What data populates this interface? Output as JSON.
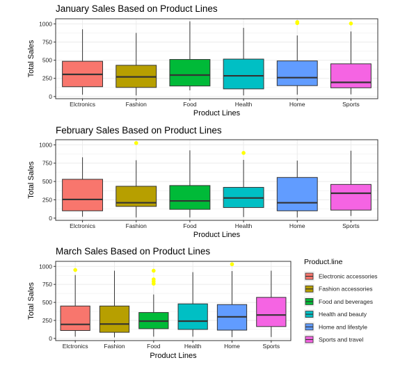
{
  "chart_data": [
    {
      "type": "boxplot",
      "title": "January Sales Based on Product Lines",
      "xlabel": "Product Lines",
      "ylabel": "Total Sales",
      "categories": [
        "Elctronics",
        "Fashion",
        "Food",
        "Health",
        "Home",
        "Sports"
      ],
      "ylim": [
        -30,
        1070
      ],
      "yticks": [
        0,
        250,
        500,
        750,
        1000
      ],
      "grid": true,
      "boxes": [
        {
          "min": 25,
          "q1": 135,
          "median": 305,
          "q3": 485,
          "max": 925,
          "outliers": []
        },
        {
          "min": 15,
          "q1": 125,
          "median": 270,
          "q3": 430,
          "max": 875,
          "outliers": []
        },
        {
          "min": 85,
          "q1": 145,
          "median": 295,
          "q3": 510,
          "max": 1035,
          "outliers": []
        },
        {
          "min": 15,
          "q1": 105,
          "median": 285,
          "q3": 515,
          "max": 945,
          "outliers": []
        },
        {
          "min": 25,
          "q1": 150,
          "median": 260,
          "q3": 490,
          "max": 840,
          "outliers": [
            1010,
            1025
          ]
        },
        {
          "min": 30,
          "q1": 120,
          "median": 195,
          "q3": 450,
          "max": 895,
          "outliers": [
            1005
          ]
        }
      ]
    },
    {
      "type": "boxplot",
      "title": "February Sales Based on Product Lines",
      "xlabel": "Product Lines",
      "ylabel": "Total Sales",
      "categories": [
        "Elctronics",
        "Fashion",
        "Food",
        "Health",
        "Home",
        "Sports"
      ],
      "ylim": [
        -30,
        1070
      ],
      "yticks": [
        0,
        250,
        500,
        750,
        1000
      ],
      "grid": true,
      "boxes": [
        {
          "min": 20,
          "q1": 100,
          "median": 255,
          "q3": 530,
          "max": 830,
          "outliers": []
        },
        {
          "min": 10,
          "q1": 160,
          "median": 210,
          "q3": 435,
          "max": 790,
          "outliers": [
            1025
          ]
        },
        {
          "min": 10,
          "q1": 120,
          "median": 235,
          "q3": 445,
          "max": 925,
          "outliers": []
        },
        {
          "min": 15,
          "q1": 145,
          "median": 275,
          "q3": 420,
          "max": 795,
          "outliers": [
            890
          ]
        },
        {
          "min": 10,
          "q1": 100,
          "median": 210,
          "q3": 555,
          "max": 785,
          "outliers": []
        },
        {
          "min": 30,
          "q1": 110,
          "median": 340,
          "q3": 460,
          "max": 920,
          "outliers": []
        }
      ]
    },
    {
      "type": "boxplot",
      "title": "March Sales Based on Product Lines",
      "xlabel": "Product Lines",
      "ylabel": "Total Sales",
      "categories": [
        "Elctronics",
        "Fashion",
        "Food",
        "Health",
        "Home",
        "Sports"
      ],
      "ylim": [
        -30,
        1070
      ],
      "yticks": [
        0,
        250,
        500,
        750,
        1000
      ],
      "grid": true,
      "boxes": [
        {
          "min": 25,
          "q1": 110,
          "median": 195,
          "q3": 450,
          "max": 880,
          "outliers": [
            950
          ]
        },
        {
          "min": 15,
          "q1": 85,
          "median": 200,
          "q3": 450,
          "max": 940,
          "outliers": []
        },
        {
          "min": 25,
          "q1": 135,
          "median": 240,
          "q3": 360,
          "max": 610,
          "outliers": [
            760,
            790,
            820,
            940
          ]
        },
        {
          "min": 25,
          "q1": 125,
          "median": 240,
          "q3": 480,
          "max": 920,
          "outliers": []
        },
        {
          "min": 20,
          "q1": 115,
          "median": 300,
          "q3": 470,
          "max": 935,
          "outliers": [
            1030
          ]
        },
        {
          "min": 20,
          "q1": 165,
          "median": 325,
          "q3": 570,
          "max": 940,
          "outliers": []
        }
      ]
    }
  ],
  "legend": {
    "title": "Product.line",
    "placement": "right",
    "items": [
      {
        "label": "Electronic accessories",
        "color": "#F8766D"
      },
      {
        "label": "Fashion accessories",
        "color": "#B79F00"
      },
      {
        "label": "Food and beverages",
        "color": "#00BA38"
      },
      {
        "label": "Health and beauty",
        "color": "#00BFC4"
      },
      {
        "label": "Home and lifestyle",
        "color": "#619CFF"
      },
      {
        "label": "Sports and travel",
        "color": "#F564E3"
      }
    ]
  },
  "colors": {
    "box_fills": [
      "#F8766D",
      "#B79F00",
      "#00BA38",
      "#00BFC4",
      "#619CFF",
      "#F564E3"
    ],
    "outlier": "#FFFF00",
    "line": "#333333",
    "grid": "#EBEBEB",
    "panel_border": "#333333"
  }
}
